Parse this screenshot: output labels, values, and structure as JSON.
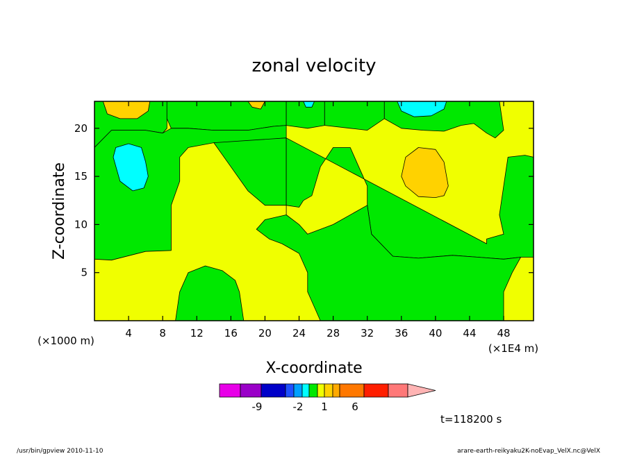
{
  "chart_data": {
    "type": "heatmap",
    "title": "zonal velocity",
    "xlabel": "X-coordinate",
    "ylabel": "Z-coordinate",
    "x_scale_label": "(×1E4 m)",
    "y_scale_label": "(×1000 m)",
    "xlim": [
      0,
      51.5
    ],
    "ylim": [
      0,
      22.8
    ],
    "x_ticks": [
      4,
      8,
      12,
      16,
      20,
      24,
      28,
      32,
      36,
      40,
      44,
      48
    ],
    "y_ticks": [
      5,
      10,
      15,
      20
    ],
    "grid": false,
    "regions": [
      {
        "level": "positive_0_1",
        "color": "#f0ff00",
        "polygon": [
          [
            0,
            0
          ],
          [
            51.5,
            0
          ],
          [
            51.5,
            22.8
          ],
          [
            0,
            22.8
          ]
        ]
      },
      {
        "level": "negative_-1_0",
        "color": "#00e800",
        "polygon": [
          [
            0,
            18
          ],
          [
            2,
            19.8
          ],
          [
            6,
            19.8
          ],
          [
            8,
            19.5
          ],
          [
            8.5,
            20
          ],
          [
            8.5,
            22.8
          ],
          [
            0,
            22.8
          ]
        ]
      },
      {
        "level": "negative_-1_0",
        "color": "#00e800",
        "polygon": [
          [
            8.5,
            22.8
          ],
          [
            8.5,
            21
          ],
          [
            9,
            20
          ],
          [
            11,
            20
          ],
          [
            14,
            19.8
          ],
          [
            18,
            19.8
          ],
          [
            21,
            20.2
          ],
          [
            22.5,
            20.3
          ],
          [
            22.5,
            22.8
          ]
        ]
      },
      {
        "level": "negative_-1_0",
        "color": "#00e800",
        "polygon": [
          [
            22.5,
            22.8
          ],
          [
            22.5,
            20.3
          ],
          [
            25,
            20
          ],
          [
            27,
            20.3
          ],
          [
            27,
            22.8
          ]
        ]
      },
      {
        "level": "negative_-1_0",
        "color": "#00e800",
        "polygon": [
          [
            0,
            18
          ],
          [
            0,
            6.4
          ],
          [
            2,
            6.3
          ],
          [
            6,
            7.2
          ],
          [
            9,
            7.3
          ],
          [
            9,
            10
          ],
          [
            9,
            12
          ],
          [
            10,
            14.5
          ],
          [
            10,
            17
          ],
          [
            11,
            18
          ],
          [
            14,
            18.5
          ],
          [
            18,
            18.5
          ],
          [
            20,
            18.8
          ],
          [
            22.5,
            19
          ],
          [
            22.5,
            20.3
          ],
          [
            21,
            20.2
          ],
          [
            18,
            19.8
          ],
          [
            14,
            19.8
          ],
          [
            11,
            20
          ],
          [
            9,
            20
          ],
          [
            8,
            19.5
          ],
          [
            6,
            19.8
          ],
          [
            2,
            19.8
          ]
        ]
      },
      {
        "level": "negative_-1_0",
        "color": "#00e800",
        "polygon": [
          [
            14,
            18.5
          ],
          [
            16,
            16
          ],
          [
            18,
            13.5
          ],
          [
            20,
            12
          ],
          [
            22.5,
            12
          ],
          [
            22.5,
            19
          ]
        ]
      },
      {
        "level": "negative_-1_0",
        "color": "#00e800",
        "polygon": [
          [
            22.5,
            19
          ],
          [
            22.5,
            12
          ],
          [
            24,
            11.8
          ],
          [
            24.5,
            12.5
          ],
          [
            25.5,
            13
          ],
          [
            26.5,
            16
          ],
          [
            28,
            18
          ],
          [
            30,
            18
          ],
          [
            31,
            16
          ],
          [
            31.5,
            15
          ],
          [
            32,
            14
          ],
          [
            32,
            12
          ],
          [
            32.5,
            9
          ],
          [
            35,
            6.7
          ],
          [
            38,
            6.5
          ],
          [
            42,
            6.8
          ],
          [
            45,
            6.6
          ],
          [
            48,
            6.4
          ],
          [
            50,
            6.6
          ],
          [
            51.5,
            6.6
          ],
          [
            51.5,
            17
          ],
          [
            50.5,
            17.2
          ],
          [
            48.5,
            17
          ],
          [
            48,
            14
          ],
          [
            47.5,
            11
          ],
          [
            48,
            9
          ],
          [
            46,
            8.5
          ],
          [
            46,
            8
          ]
        ]
      },
      {
        "level": "negative_-1_0",
        "color": "#00e800",
        "polygon": [
          [
            22.5,
            12
          ],
          [
            22.5,
            11
          ],
          [
            20,
            10.5
          ],
          [
            19,
            9.5
          ],
          [
            20.5,
            8.5
          ],
          [
            22,
            8
          ],
          [
            24,
            7
          ],
          [
            25,
            5
          ],
          [
            25,
            3
          ],
          [
            26,
            1
          ],
          [
            26.5,
            0
          ],
          [
            38,
            0
          ],
          [
            40,
            0
          ],
          [
            48,
            0
          ],
          [
            48,
            3
          ],
          [
            49,
            5
          ],
          [
            50,
            6.6
          ],
          [
            48,
            6.4
          ],
          [
            45,
            6.6
          ],
          [
            42,
            6.8
          ],
          [
            38,
            6.5
          ],
          [
            35,
            6.7
          ],
          [
            32.5,
            9
          ],
          [
            32,
            12
          ],
          [
            28,
            10
          ],
          [
            25,
            9
          ],
          [
            24,
            10
          ],
          [
            22.5,
            11
          ]
        ]
      },
      {
        "level": "negative_-1_0",
        "color": "#00e800",
        "polygon": [
          [
            9.5,
            0
          ],
          [
            10,
            3
          ],
          [
            11,
            5
          ],
          [
            13,
            5.7
          ],
          [
            15,
            5.2
          ],
          [
            16.5,
            4.2
          ],
          [
            17,
            3
          ],
          [
            17.5,
            0
          ]
        ]
      },
      {
        "level": "negative_-1_0",
        "color": "#00e800",
        "polygon": [
          [
            34,
            22.8
          ],
          [
            34,
            21
          ],
          [
            36,
            20
          ],
          [
            38.5,
            19.8
          ],
          [
            41,
            19.7
          ],
          [
            43,
            20.3
          ],
          [
            44.5,
            20.5
          ],
          [
            46,
            19.5
          ],
          [
            47,
            19
          ],
          [
            48,
            19.8
          ],
          [
            47.5,
            22.8
          ]
        ]
      },
      {
        "level": "negative_-1_0",
        "color": "#00e800",
        "polygon": [
          [
            27,
            22.8
          ],
          [
            27,
            20.3
          ],
          [
            30,
            20
          ],
          [
            32,
            19.8
          ],
          [
            34,
            21
          ],
          [
            34,
            22.8
          ]
        ]
      },
      {
        "level": "positive_1_2",
        "color": "#ffd200",
        "polygon": [
          [
            1,
            22.8
          ],
          [
            1.5,
            21.5
          ],
          [
            3,
            21
          ],
          [
            5,
            21
          ],
          [
            6.3,
            21.8
          ],
          [
            6.5,
            22.8
          ]
        ]
      },
      {
        "level": "positive_1_2",
        "color": "#ffd200",
        "polygon": [
          [
            18,
            22.8
          ],
          [
            18.5,
            22.2
          ],
          [
            19.5,
            22
          ],
          [
            20,
            22.8
          ]
        ]
      },
      {
        "level": "positive_1_2",
        "color": "#ffd200",
        "polygon": [
          [
            36,
            15
          ],
          [
            36.5,
            17
          ],
          [
            38,
            18
          ],
          [
            40,
            17.8
          ],
          [
            41,
            16.5
          ],
          [
            41.5,
            14
          ],
          [
            41,
            13
          ],
          [
            40,
            12.8
          ],
          [
            38,
            12.9
          ],
          [
            36.5,
            14
          ]
        ]
      },
      {
        "level": "negative_-2_-1",
        "color": "#00ffff",
        "polygon": [
          [
            2.2,
            17
          ],
          [
            2.5,
            18
          ],
          [
            4,
            18.4
          ],
          [
            5.5,
            18
          ],
          [
            6,
            16.5
          ],
          [
            6.3,
            15
          ],
          [
            5.8,
            13.8
          ],
          [
            4.5,
            13.5
          ],
          [
            3,
            14.5
          ]
        ]
      },
      {
        "level": "negative_-2_-1",
        "color": "#00ffff",
        "polygon": [
          [
            35.5,
            22.8
          ],
          [
            36,
            21.8
          ],
          [
            37.5,
            21.2
          ],
          [
            39.5,
            21.3
          ],
          [
            41,
            22
          ],
          [
            41.3,
            22.8
          ]
        ]
      },
      {
        "level": "negative_-2_-1",
        "color": "#00ffff",
        "polygon": [
          [
            24.5,
            22.8
          ],
          [
            24.8,
            22.2
          ],
          [
            25.5,
            22.2
          ],
          [
            25.8,
            22.8
          ]
        ]
      }
    ],
    "colorbar": {
      "colors": [
        "#e800e8",
        "#9a00c8",
        "#0000c8",
        "#1e50ff",
        "#00a0ff",
        "#00ffff",
        "#00e800",
        "#f0ff00",
        "#ffd200",
        "#ffaa00",
        "#ff7800",
        "#ff1e00",
        "#ff7878",
        "#ffb4b4"
      ],
      "tick_labels": [
        "-9",
        "-2",
        "1",
        "6"
      ]
    }
  },
  "annotations": {
    "time": "t=118200 s",
    "footer_left": "/usr/bin/gpview  2010-11-10",
    "footer_right": "arare-earth-reikyaku2K-noEvap_VelX.nc@VelX"
  }
}
